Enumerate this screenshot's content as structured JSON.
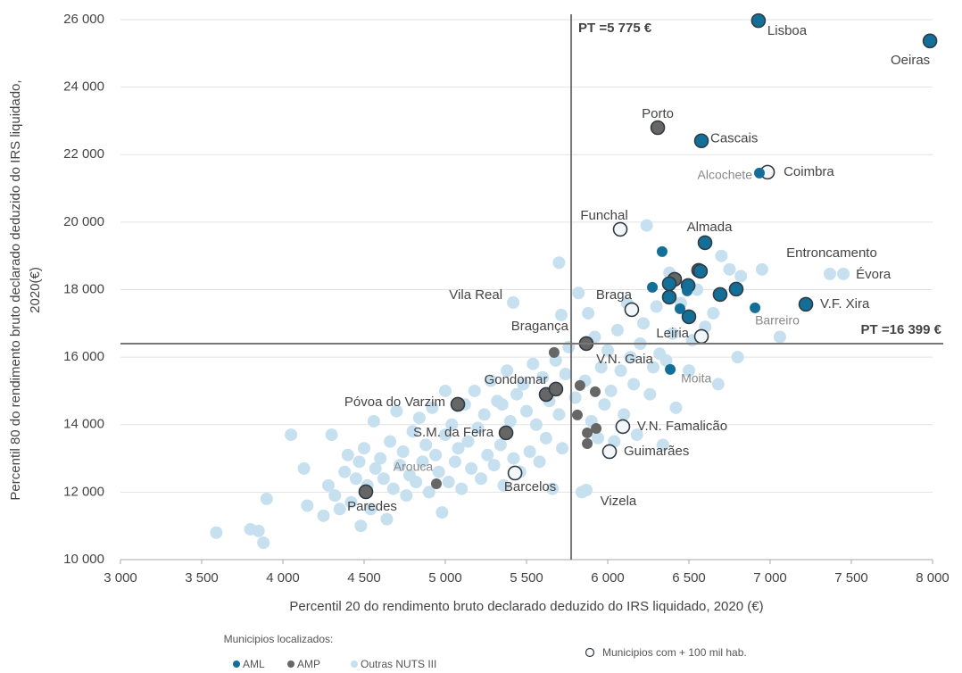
{
  "chart_data": {
    "type": "scatter",
    "xlabel": "Percentil 20 do rendimento bruto declarado deduzido do IRS liquidado, 2020 (€)",
    "ylabel": [
      "Percentil 80 do rendimento bruto declarado deduzido do IRS liquidado,",
      "2020(€)"
    ],
    "xlim": [
      3000,
      8000
    ],
    "ylim": [
      10000,
      26000
    ],
    "xticks": [
      {
        "value": 3000,
        "label": "3 000"
      },
      {
        "value": 3500,
        "label": "3 500"
      },
      {
        "value": 4000,
        "label": "4 000"
      },
      {
        "value": 4500,
        "label": "4 500"
      },
      {
        "value": 5000,
        "label": "5 000"
      },
      {
        "value": 5500,
        "label": "5 500"
      },
      {
        "value": 6000,
        "label": "6 000"
      },
      {
        "value": 6500,
        "label": "6 500"
      },
      {
        "value": 7000,
        "label": "7 000"
      },
      {
        "value": 7500,
        "label": "7 500"
      },
      {
        "value": 8000,
        "label": "8 000"
      }
    ],
    "yticks": [
      {
        "value": 10000,
        "label": "10 000"
      },
      {
        "value": 12000,
        "label": "12 000"
      },
      {
        "value": 14000,
        "label": "14 000"
      },
      {
        "value": 16000,
        "label": "16 000"
      },
      {
        "value": 18000,
        "label": "18 000"
      },
      {
        "value": 20000,
        "label": "20 000"
      },
      {
        "value": 22000,
        "label": "22 000"
      },
      {
        "value": 24000,
        "label": "24 000"
      },
      {
        "value": 26000,
        "label": "26 000"
      }
    ],
    "grid": true,
    "reference_lines": [
      {
        "axis": "x",
        "value": 5775,
        "label": "PT =5 775 €"
      },
      {
        "axis": "y",
        "value": 16399,
        "label": "PT =16 399 €"
      }
    ],
    "legend_title": "Municipios localizados:",
    "large_legend": "Municipios com + 100 mil hab.",
    "large_outline": "#2f3b44",
    "large_fill": "#f3f7fa",
    "series": [
      {
        "name": "Outras NUTS III",
        "color": "#c6e0ef",
        "x": [
          3590,
          3800,
          3850,
          3880,
          3900,
          4050,
          4130,
          4150,
          4250,
          4280,
          4300,
          4320,
          4350,
          4380,
          4400,
          4420,
          4450,
          4470,
          4480,
          4500,
          4520,
          4540,
          4560,
          4570,
          4600,
          4620,
          4640,
          4660,
          4680,
          4700,
          4720,
          4740,
          4760,
          4780,
          4800,
          4820,
          4840,
          4860,
          4880,
          4900,
          4920,
          4940,
          4960,
          4980,
          5000,
          5020,
          5040,
          5060,
          5080,
          5100,
          5120,
          5140,
          5160,
          5180,
          5200,
          5220,
          5240,
          5260,
          5280,
          5300,
          5320,
          5340,
          5360,
          5380,
          5400,
          5420,
          5440,
          5460,
          5480,
          5500,
          5520,
          5540,
          5560,
          5580,
          5600,
          5620,
          5640,
          5660,
          5680,
          5700,
          5720,
          5740,
          5760,
          5800,
          5820,
          5840,
          5860,
          5880,
          5900,
          5920,
          5940,
          5960,
          5980,
          6000,
          6020,
          6040,
          6060,
          6080,
          6100,
          6120,
          6140,
          6160,
          6180,
          6200,
          6220,
          6240,
          6260,
          6280,
          6300,
          6320,
          6340,
          6360,
          6380,
          6400,
          6420,
          6450,
          6500,
          6520,
          6550,
          6600,
          6650,
          6680,
          6700,
          6750,
          6800,
          6820,
          6950,
          7060,
          5700,
          5350,
          5000,
          7368,
          7451,
          5418,
          5714,
          5868,
          6984,
          6077,
          6148,
          6577,
          6093,
          6011,
          5429
        ],
        "values": [
          10800,
          10900,
          10850,
          10500,
          11800,
          13700,
          12700,
          11600,
          11300,
          12200,
          13700,
          11900,
          11500,
          12600,
          13100,
          11700,
          12400,
          12900,
          11000,
          13300,
          12200,
          11500,
          14100,
          12700,
          13000,
          12400,
          11200,
          13500,
          12100,
          14400,
          12800,
          13200,
          11900,
          12500,
          13800,
          12300,
          14200,
          12900,
          13400,
          12000,
          14500,
          13100,
          12600,
          11400,
          13700,
          12300,
          14000,
          12900,
          13300,
          12100,
          14600,
          13500,
          12700,
          15000,
          13900,
          12400,
          14300,
          13100,
          15300,
          12800,
          14700,
          13400,
          12200,
          15600,
          14100,
          13000,
          14900,
          12600,
          15200,
          14400,
          13200,
          15800,
          14000,
          12900,
          15400,
          13600,
          14700,
          12100,
          15900,
          14300,
          13300,
          15500,
          16300,
          14800,
          17900,
          12000,
          15300,
          17300,
          14100,
          16600,
          13600,
          15700,
          14600,
          16200,
          15000,
          13500,
          16800,
          15600,
          14300,
          17600,
          16000,
          15200,
          13700,
          16400,
          17000,
          19900,
          14900,
          15700,
          17500,
          16100,
          13400,
          15900,
          18500,
          16700,
          14500,
          17600,
          15600,
          16500,
          18000,
          16900,
          17300,
          15200,
          19000,
          18600,
          16000,
          18400,
          18600,
          16600,
          18800,
          14600,
          15000,
          18466,
          18466,
          17619,
          17249,
          12063,
          21481,
          19788,
          17407,
          16614,
          13942,
          13201,
          12566
        ],
        "labels": [
          null,
          null,
          null,
          null,
          null,
          null,
          null,
          null,
          null,
          null,
          null,
          null,
          null,
          null,
          null,
          null,
          null,
          null,
          null,
          null,
          null,
          null,
          null,
          null,
          null,
          null,
          null,
          null,
          null,
          null,
          null,
          null,
          null,
          null,
          null,
          null,
          null,
          null,
          null,
          null,
          null,
          null,
          null,
          null,
          null,
          null,
          null,
          null,
          null,
          null,
          null,
          null,
          null,
          null,
          null,
          null,
          null,
          null,
          null,
          null,
          null,
          null,
          null,
          null,
          null,
          null,
          null,
          null,
          null,
          null,
          null,
          null,
          null,
          null,
          null,
          null,
          null,
          null,
          null,
          null,
          null,
          null,
          null,
          null,
          null,
          null,
          null,
          null,
          null,
          null,
          null,
          null,
          null,
          null,
          null,
          null,
          null,
          null,
          null,
          null,
          null,
          null,
          null,
          null,
          null,
          null,
          null,
          null,
          null,
          null,
          null,
          null,
          null,
          null,
          null,
          null,
          null,
          null,
          null,
          null,
          null,
          null,
          null,
          null,
          null,
          null,
          null,
          null,
          null,
          null,
          null,
          "Entroncamento",
          "Évora",
          "Vila Real",
          "Bragança",
          "Vizela",
          "Coimbra",
          "Funchal",
          "Braga",
          "Leiria",
          "V.N. Famalicão",
          "Guimarães",
          "Barcelos"
        ],
        "large": [
          false,
          false,
          false,
          false,
          false,
          false,
          false,
          false,
          false,
          false,
          false,
          false,
          false,
          false,
          false,
          false,
          false,
          false,
          false,
          false,
          false,
          false,
          false,
          false,
          false,
          false,
          false,
          false,
          false,
          false,
          false,
          false,
          false,
          false,
          false,
          false,
          false,
          false,
          false,
          false,
          false,
          false,
          false,
          false,
          false,
          false,
          false,
          false,
          false,
          false,
          false,
          false,
          false,
          false,
          false,
          false,
          false,
          false,
          false,
          false,
          false,
          false,
          false,
          false,
          false,
          false,
          false,
          false,
          false,
          false,
          false,
          false,
          false,
          false,
          false,
          false,
          false,
          false,
          false,
          false,
          false,
          false,
          false,
          false,
          false,
          false,
          false,
          false,
          false,
          false,
          false,
          false,
          false,
          false,
          false,
          false,
          false,
          false,
          false,
          false,
          false,
          false,
          false,
          false,
          false,
          false,
          false,
          false,
          false,
          false,
          false,
          false,
          false,
          false,
          false,
          false,
          false,
          false,
          false,
          false,
          false,
          false,
          false,
          false,
          false,
          false,
          false,
          false,
          false,
          false,
          false,
          false,
          false,
          false,
          false,
          false,
          true,
          true,
          true,
          true,
          true,
          true,
          true
        ]
      },
      {
        "name": "AMP",
        "color": "#666666",
        "x": [
          6308,
          5868,
          5621,
          5077,
          5374,
          4945,
          4511,
          6560,
          6412,
          5670,
          5681,
          5829,
          5923,
          5813,
          5929,
          5874,
          5874
        ],
        "values": [
          22800,
          16402,
          14894,
          14603,
          13757,
          12249,
          12011,
          18571,
          18307,
          16138,
          15053,
          15159,
          14974,
          14286,
          13889,
          13757,
          13439
        ],
        "labels": [
          "Porto",
          "V.N. Gaia",
          "Gondomar",
          "Póvoa do Varzim",
          "S.M. da Feira",
          "Arouca",
          "Paredes",
          null,
          null,
          null,
          null,
          null,
          null,
          null,
          null,
          null,
          null
        ],
        "large": [
          true,
          true,
          true,
          true,
          true,
          false,
          true,
          true,
          true,
          false,
          true,
          false,
          false,
          false,
          false,
          false,
          false
        ]
      },
      {
        "name": "AML",
        "color": "#146f98",
        "x": [
          6928,
          7984,
          6577,
          6934,
          6599,
          7220,
          6907,
          6385,
          6571,
          6495,
          6379,
          6500,
          6692,
          6791,
          6379,
          6335,
          6275,
          6445,
          6489
        ],
        "values": [
          25970,
          25370,
          22410,
          21455,
          19391,
          17566,
          17460,
          15635,
          18545,
          18122,
          17778,
          17196,
          17857,
          18016,
          18175,
          19127,
          18069,
          17434,
          17963
        ],
        "labels": [
          "Lisboa",
          "Oeiras",
          "Cascais",
          "Alcochete",
          "Almada",
          "V.F. Xira",
          "Barreiro",
          "Moita",
          null,
          null,
          null,
          null,
          null,
          null,
          null,
          null,
          null,
          null,
          null
        ],
        "large": [
          true,
          true,
          true,
          false,
          true,
          true,
          false,
          false,
          true,
          true,
          true,
          true,
          true,
          true,
          true,
          false,
          false,
          false,
          false
        ]
      }
    ]
  }
}
